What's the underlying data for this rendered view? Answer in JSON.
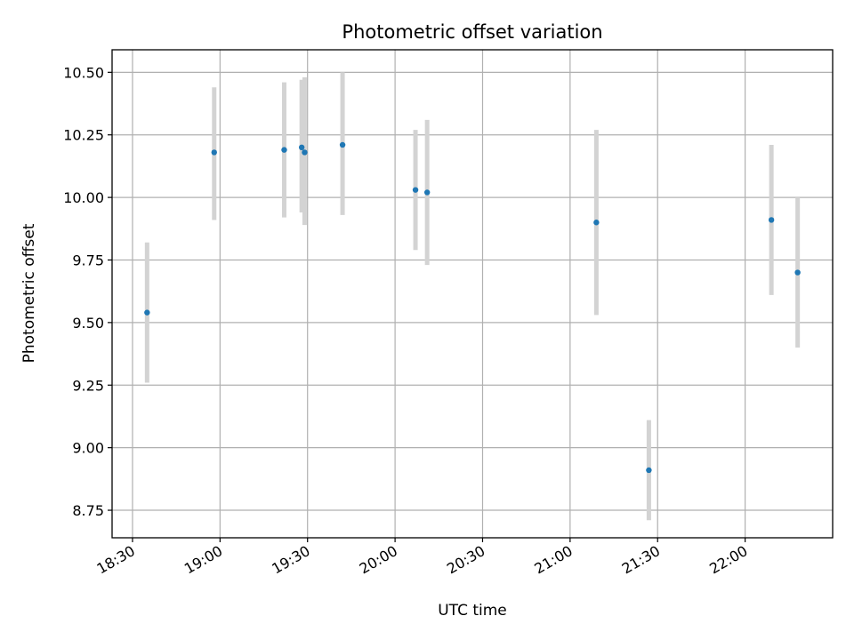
{
  "chart_data": {
    "type": "scatter",
    "title": "Photometric offset variation",
    "xlabel": "UTC time",
    "ylabel": "Photometric offset",
    "x_ticks": [
      "18:30",
      "19:00",
      "19:30",
      "20:00",
      "20:30",
      "21:00",
      "21:30",
      "22:00"
    ],
    "y_ticks": [
      "8.75",
      "9.00",
      "9.25",
      "9.50",
      "9.75",
      "10.00",
      "10.25",
      "10.50"
    ],
    "xlim": [
      "18:23",
      "22:30"
    ],
    "ylim": [
      8.64,
      10.59
    ],
    "grid": true,
    "colors": {
      "points": "#1f77b4",
      "error_bars": "#d3d3d3"
    },
    "series": [
      {
        "x": [
          "18:35",
          "18:58",
          "19:22",
          "19:28",
          "19:29",
          "19:42",
          "20:07",
          "20:11",
          "21:09",
          "21:27",
          "22:09",
          "22:18"
        ],
        "y": [
          9.54,
          10.18,
          10.19,
          10.2,
          10.18,
          10.21,
          10.03,
          10.02,
          9.9,
          8.91,
          9.91,
          9.7
        ],
        "y_low": [
          9.26,
          9.91,
          9.92,
          9.94,
          9.89,
          9.93,
          9.79,
          9.73,
          9.53,
          8.71,
          9.61,
          9.4
        ],
        "y_high": [
          9.82,
          10.44,
          10.46,
          10.47,
          10.48,
          10.5,
          10.27,
          10.31,
          10.27,
          9.11,
          10.21,
          10.0
        ]
      }
    ]
  }
}
